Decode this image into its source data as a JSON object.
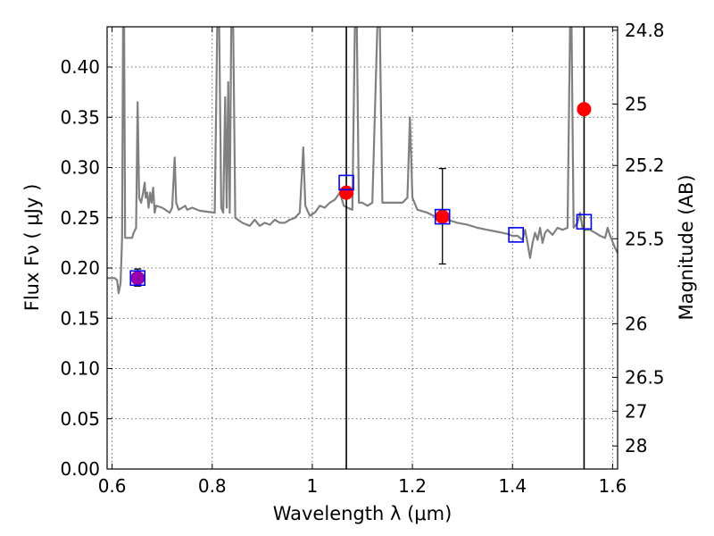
{
  "chart_data": {
    "type": "scatter",
    "xlabel": "Wavelength  λ (μm)",
    "ylabel": "Flux  Fν  ( μJy )",
    "ylabel_right": "Magnitude (AB)",
    "xlim": [
      0.59,
      1.61
    ],
    "ylim": [
      0.0,
      0.44
    ],
    "grid": true,
    "x_ticks": [
      {
        "value": 0.6,
        "label": "0.6"
      },
      {
        "value": 0.8,
        "label": "0.8"
      },
      {
        "value": 1.0,
        "label": "1"
      },
      {
        "value": 1.2,
        "label": "1.2"
      },
      {
        "value": 1.4,
        "label": "1.4"
      },
      {
        "value": 1.6,
        "label": "1.6"
      }
    ],
    "y_ticks": [
      {
        "value": 0.0,
        "label": "0.00"
      },
      {
        "value": 0.05,
        "label": "0.05"
      },
      {
        "value": 0.1,
        "label": "0.10"
      },
      {
        "value": 0.15,
        "label": "0.15"
      },
      {
        "value": 0.2,
        "label": "0.20"
      },
      {
        "value": 0.25,
        "label": "0.25"
      },
      {
        "value": 0.3,
        "label": "0.30"
      },
      {
        "value": 0.35,
        "label": "0.35"
      },
      {
        "value": 0.4,
        "label": "0.40"
      }
    ],
    "mag_ticks": [
      {
        "value": 24.8,
        "label": "24.8"
      },
      {
        "value": 25.0,
        "label": "25"
      },
      {
        "value": 25.2,
        "label": "25.2"
      },
      {
        "value": 25.5,
        "label": "25.5"
      },
      {
        "value": 26.0,
        "label": "26"
      },
      {
        "value": 26.5,
        "label": "26.5"
      },
      {
        "value": 27.0,
        "label": "27"
      },
      {
        "value": 28.0,
        "label": "28"
      }
    ],
    "vertical_lines": [
      1.068,
      1.543
    ],
    "spectrum": {
      "color": "#808080",
      "points": [
        [
          0.59,
          0.19
        ],
        [
          0.605,
          0.19
        ],
        [
          0.61,
          0.188
        ],
        [
          0.613,
          0.175
        ],
        [
          0.617,
          0.185
        ],
        [
          0.62,
          0.23
        ],
        [
          0.622,
          0.44
        ],
        [
          0.624,
          0.44
        ],
        [
          0.626,
          0.23
        ],
        [
          0.63,
          0.23
        ],
        [
          0.635,
          0.23
        ],
        [
          0.64,
          0.23
        ],
        [
          0.643,
          0.235
        ],
        [
          0.648,
          0.24
        ],
        [
          0.651,
          0.365
        ],
        [
          0.654,
          0.27
        ],
        [
          0.658,
          0.265
        ],
        [
          0.662,
          0.275
        ],
        [
          0.665,
          0.285
        ],
        [
          0.667,
          0.27
        ],
        [
          0.67,
          0.275
        ],
        [
          0.673,
          0.26
        ],
        [
          0.676,
          0.275
        ],
        [
          0.679,
          0.265
        ],
        [
          0.682,
          0.28
        ],
        [
          0.685,
          0.255
        ],
        [
          0.688,
          0.262
        ],
        [
          0.7,
          0.26
        ],
        [
          0.715,
          0.255
        ],
        [
          0.72,
          0.26
        ],
        [
          0.725,
          0.31
        ],
        [
          0.728,
          0.265
        ],
        [
          0.733,
          0.258
        ],
        [
          0.74,
          0.26
        ],
        [
          0.746,
          0.262
        ],
        [
          0.75,
          0.258
        ],
        [
          0.76,
          0.26
        ],
        [
          0.775,
          0.257
        ],
        [
          0.79,
          0.256
        ],
        [
          0.805,
          0.255
        ],
        [
          0.81,
          0.44
        ],
        [
          0.814,
          0.44
        ],
        [
          0.818,
          0.26
        ],
        [
          0.822,
          0.255
        ],
        [
          0.826,
          0.37
        ],
        [
          0.829,
          0.26
        ],
        [
          0.832,
          0.385
        ],
        [
          0.835,
          0.255
        ],
        [
          0.838,
          0.44
        ],
        [
          0.842,
          0.44
        ],
        [
          0.846,
          0.25
        ],
        [
          0.86,
          0.245
        ],
        [
          0.875,
          0.242
        ],
        [
          0.885,
          0.248
        ],
        [
          0.895,
          0.242
        ],
        [
          0.905,
          0.245
        ],
        [
          0.915,
          0.243
        ],
        [
          0.925,
          0.248
        ],
        [
          0.935,
          0.245
        ],
        [
          0.945,
          0.245
        ],
        [
          0.955,
          0.248
        ],
        [
          0.965,
          0.25
        ],
        [
          0.975,
          0.255
        ],
        [
          0.982,
          0.32
        ],
        [
          0.986,
          0.262
        ],
        [
          0.995,
          0.252
        ],
        [
          1.005,
          0.255
        ],
        [
          1.015,
          0.262
        ],
        [
          1.025,
          0.26
        ],
        [
          1.035,
          0.265
        ],
        [
          1.045,
          0.268
        ],
        [
          1.055,
          0.275
        ],
        [
          1.063,
          0.262
        ],
        [
          1.07,
          0.26
        ],
        [
          1.08,
          0.258
        ],
        [
          1.085,
          0.44
        ],
        [
          1.089,
          0.44
        ],
        [
          1.093,
          0.265
        ],
        [
          1.1,
          0.265
        ],
        [
          1.11,
          0.262
        ],
        [
          1.12,
          0.265
        ],
        [
          1.13,
          0.44
        ],
        [
          1.135,
          0.44
        ],
        [
          1.14,
          0.265
        ],
        [
          1.16,
          0.265
        ],
        [
          1.18,
          0.265
        ],
        [
          1.19,
          0.27
        ],
        [
          1.195,
          0.35
        ],
        [
          1.2,
          0.27
        ],
        [
          1.21,
          0.258
        ],
        [
          1.23,
          0.255
        ],
        [
          1.25,
          0.25
        ],
        [
          1.27,
          0.248
        ],
        [
          1.29,
          0.245
        ],
        [
          1.31,
          0.243
        ],
        [
          1.33,
          0.24
        ],
        [
          1.35,
          0.238
        ],
        [
          1.37,
          0.236
        ],
        [
          1.39,
          0.234
        ],
        [
          1.4,
          0.232
        ],
        [
          1.41,
          0.232
        ],
        [
          1.42,
          0.228
        ],
        [
          1.425,
          0.238
        ],
        [
          1.43,
          0.225
        ],
        [
          1.435,
          0.21
        ],
        [
          1.44,
          0.225
        ],
        [
          1.445,
          0.235
        ],
        [
          1.45,
          0.228
        ],
        [
          1.455,
          0.24
        ],
        [
          1.46,
          0.225
        ],
        [
          1.465,
          0.235
        ],
        [
          1.47,
          0.238
        ],
        [
          1.48,
          0.233
        ],
        [
          1.49,
          0.24
        ],
        [
          1.5,
          0.238
        ],
        [
          1.51,
          0.24
        ],
        [
          1.515,
          0.44
        ],
        [
          1.518,
          0.44
        ],
        [
          1.522,
          0.24
        ],
        [
          1.53,
          0.245
        ],
        [
          1.535,
          0.255
        ],
        [
          1.54,
          0.24
        ],
        [
          1.545,
          0.238
        ],
        [
          1.555,
          0.238
        ],
        [
          1.565,
          0.235
        ],
        [
          1.575,
          0.232
        ],
        [
          1.585,
          0.23
        ],
        [
          1.59,
          0.24
        ],
        [
          1.595,
          0.232
        ],
        [
          1.605,
          0.22
        ],
        [
          1.61,
          0.215
        ]
      ]
    },
    "model_boxes": {
      "color": "#0000ff",
      "points": [
        [
          0.651,
          0.19
        ],
        [
          1.068,
          0.285
        ],
        [
          1.26,
          0.251
        ],
        [
          1.407,
          0.233
        ],
        [
          1.543,
          0.246
        ]
      ]
    },
    "observed": {
      "color": "#ff0000",
      "points": [
        {
          "x": 1.068,
          "y": 0.275
        },
        {
          "x": 1.26,
          "y": 0.251,
          "err_low": 0.204,
          "err_high": 0.299
        },
        {
          "x": 1.543,
          "y": 0.358
        }
      ]
    },
    "purple_point": {
      "color": "#9900aa",
      "x": 0.651,
      "y": 0.19,
      "err_low": 0.182,
      "err_high": 0.199
    }
  }
}
